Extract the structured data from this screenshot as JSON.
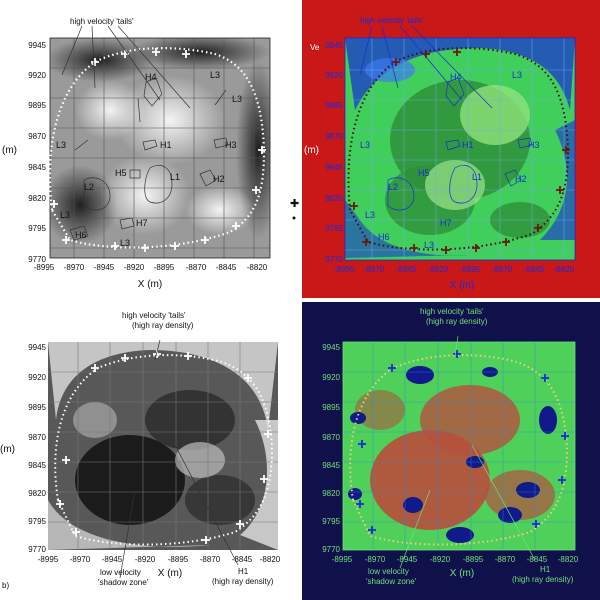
{
  "common": {
    "x_ticks": [
      "-8995",
      "-8970",
      "-8945",
      "-8920",
      "-8895",
      "-8870",
      "-8845",
      "-8820"
    ],
    "y_ticks": [
      "9945",
      "9920",
      "9895",
      "9870",
      "9845",
      "9820",
      "9795",
      "9770"
    ],
    "x_axis_label": "X (m)",
    "y_axis_label_full": "Y (m)",
    "y_axis_label_cut": "(m)"
  },
  "top_left": {
    "annotation": "high velocity 'tails'",
    "regions": {
      "H1": "H1",
      "H2": "H2",
      "H3": "H3",
      "H4": "H4",
      "H5": "H5",
      "H6": "H6",
      "H7": "H7",
      "L1": "L1",
      "L2": "L2",
      "L3": "L3"
    }
  },
  "top_right": {
    "annotation": "high velocity 'tails'",
    "side_text": "Ve"
  },
  "bottom_left": {
    "annotation_top_1": "high velocity 'tails'",
    "annotation_top_2": "(high ray density)",
    "annotation_bottom_1": "low velocity",
    "annotation_bottom_2": "'shadow zone'",
    "annotation_h1_1": "H1",
    "annotation_h1_2": "(high ray density)",
    "side_text": "b)"
  },
  "bottom_right": {
    "annotation_top_1": "high velocity 'tails'",
    "annotation_top_2": "(high ray density)",
    "annotation_bottom_1": "low velocity",
    "annotation_bottom_2": "'shadow zone'",
    "annotation_h1_1": "H1",
    "annotation_h1_2": "(high ray density)"
  },
  "colors": {
    "red_background": "#c81818",
    "navy_background": "#10104a",
    "green_field": "#3fcf5a",
    "blue_high": "#1a2bd8"
  }
}
